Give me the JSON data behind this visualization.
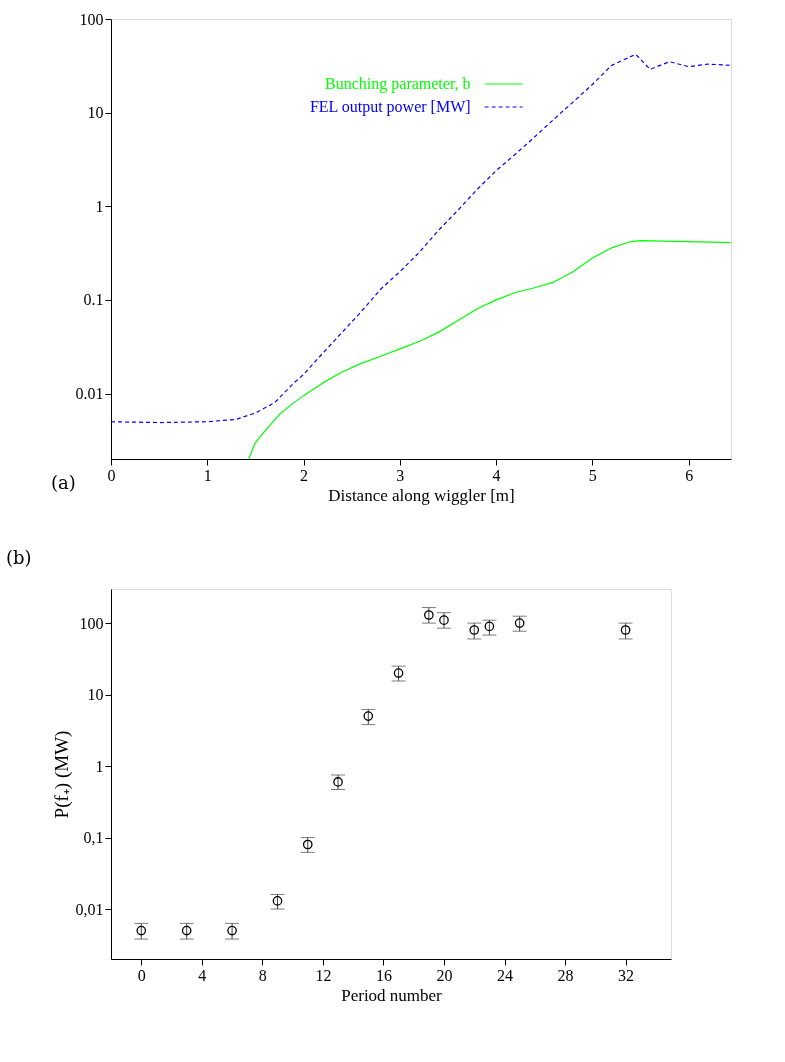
{
  "chart_data": [
    {
      "type": "line",
      "xlabel": "Distance along wiggler [m]",
      "xlim": [
        0,
        6.44
      ],
      "xticks": [
        0,
        1,
        2,
        3,
        4,
        5,
        6
      ],
      "ylim": [
        0.002,
        100
      ],
      "yticks": [
        0.01,
        0.1,
        1,
        10,
        100
      ],
      "log": "y",
      "grid": false,
      "legend": "top",
      "annotations": [
        "(a)"
      ],
      "series": [
        {
          "name": "Bunching parameter, b",
          "color": "#00ff00",
          "line_style": "solid",
          "x": [
            1.43,
            1.5,
            1.6,
            1.75,
            1.9,
            2.0,
            2.2,
            2.4,
            2.6,
            2.8,
            3.0,
            3.2,
            3.4,
            3.6,
            3.8,
            4.0,
            4.2,
            4.4,
            4.6,
            4.8,
            5.0,
            5.2,
            5.4,
            5.5,
            6.0,
            6.44
          ],
          "values": [
            0.002,
            0.003,
            0.004,
            0.006,
            0.008,
            0.0095,
            0.013,
            0.017,
            0.021,
            0.025,
            0.03,
            0.036,
            0.045,
            0.06,
            0.08,
            0.1,
            0.12,
            0.135,
            0.155,
            0.2,
            0.28,
            0.36,
            0.42,
            0.43,
            0.42,
            0.41
          ]
        },
        {
          "name": "FEL output power [MW]",
          "color": "#0000ff",
          "line_style": "dashed",
          "x": [
            0,
            0.5,
            1.0,
            1.3,
            1.5,
            1.7,
            1.9,
            2.0,
            2.2,
            2.4,
            2.6,
            2.8,
            3.0,
            3.2,
            3.4,
            3.6,
            3.8,
            4.0,
            4.2,
            4.4,
            4.6,
            4.8,
            5.0,
            5.2,
            5.45,
            5.6,
            5.8,
            6.0,
            6.2,
            6.44
          ],
          "values": [
            0.005,
            0.0049,
            0.005,
            0.0053,
            0.0062,
            0.008,
            0.013,
            0.016,
            0.027,
            0.045,
            0.075,
            0.13,
            0.2,
            0.32,
            0.55,
            0.9,
            1.5,
            2.4,
            3.6,
            5.5,
            8.5,
            13,
            20,
            32,
            42,
            29,
            35,
            31,
            33,
            32
          ]
        }
      ]
    },
    {
      "type": "scatter",
      "xlabel": "Period number",
      "ylabel": "P(f₊) (MW)",
      "xlim": [
        -2,
        35
      ],
      "xticks": [
        0,
        4,
        8,
        12,
        16,
        20,
        24,
        28,
        32
      ],
      "ylim": [
        0.002,
        300
      ],
      "yticks": [
        {
          "value": 0.01,
          "label": "0,01"
        },
        {
          "value": 0.1,
          "label": "0,1"
        },
        1,
        10,
        100
      ],
      "log": "y",
      "grid": false,
      "marker": "circle",
      "annotations": [
        "(b)"
      ],
      "series": [
        {
          "color": "#000000",
          "x": [
            0,
            3,
            6,
            9,
            11,
            13,
            15,
            17,
            19,
            20,
            22,
            23,
            25,
            32
          ],
          "values": [
            0.005,
            0.005,
            0.005,
            0.013,
            0.08,
            0.6,
            5,
            20,
            130,
            110,
            80,
            90,
            100,
            80
          ],
          "errors": [
            [
              0.0038,
              0.0063
            ],
            [
              0.0038,
              0.0063
            ],
            [
              0.0038,
              0.0063
            ],
            [
              0.01,
              0.016
            ],
            [
              0.062,
              0.1
            ],
            [
              0.47,
              0.75
            ],
            [
              3.8,
              6.2
            ],
            [
              15.5,
              25
            ],
            [
              100,
              165
            ],
            [
              85,
              140
            ],
            [
              60,
              100
            ],
            [
              68,
              110
            ],
            [
              77,
              125
            ],
            [
              60,
              100
            ]
          ]
        }
      ]
    }
  ]
}
